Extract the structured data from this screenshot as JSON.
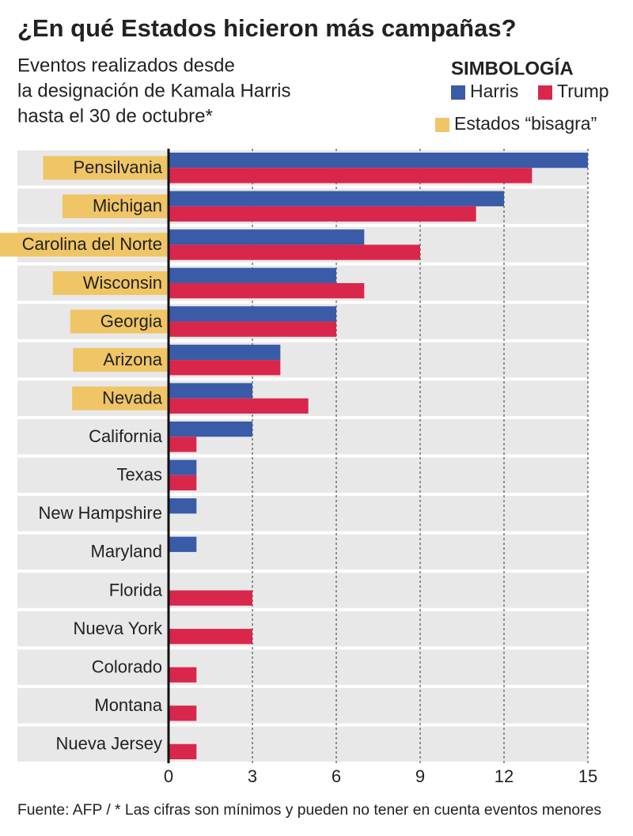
{
  "chart_data": {
    "type": "hbar",
    "title": "¿En qué Estados hicieron más campañas?",
    "subtitle": [
      "Eventos realizados desde",
      "la designación de Kamala Harris",
      "hasta el 30 de octubre*"
    ],
    "legend_title": "SIMBOLOGÍA",
    "highlight_label": "Estados “bisagra”",
    "highlight_color": "#f0c566",
    "categories": [
      "Pensilvania",
      "Michigan",
      "Carolina del Norte",
      "Wisconsin",
      "Georgia",
      "Arizona",
      "Nevada",
      "California",
      "Texas",
      "New Hampshire",
      "Maryland",
      "Florida",
      "Nueva York",
      "Colorado",
      "Montana",
      "Nueva Jersey"
    ],
    "highlighted": [
      true,
      true,
      true,
      true,
      true,
      true,
      true,
      false,
      false,
      false,
      false,
      false,
      false,
      false,
      false,
      false
    ],
    "series": [
      {
        "name": "Harris",
        "color": "#3a5ba8",
        "values": [
          15,
          12,
          7,
          6,
          6,
          4,
          3,
          3,
          1,
          1,
          1,
          0,
          0,
          0,
          0,
          0
        ]
      },
      {
        "name": "Trump",
        "color": "#d9274b",
        "values": [
          13,
          11,
          9,
          7,
          6,
          4,
          5,
          1,
          1,
          0,
          0,
          3,
          3,
          1,
          1,
          1
        ]
      }
    ],
    "xlim": [
      0,
      15
    ],
    "xticks": [
      0,
      3,
      6,
      9,
      12,
      15
    ],
    "grid": true,
    "source": "Fuente: AFP / * Las cifras son mínimos y pueden no tener en cuenta eventos menores"
  }
}
